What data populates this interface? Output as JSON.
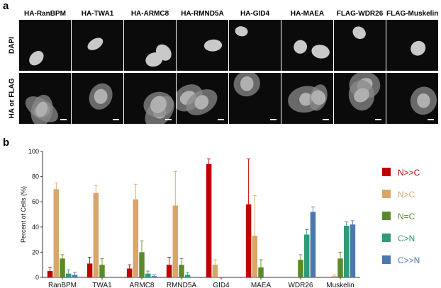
{
  "panel_a": {
    "letter": "a",
    "row_labels": [
      "DAPI",
      "HA or FLAG"
    ],
    "columns": [
      "HA-RanBPM",
      "HA-TWA1",
      "HA-ARMC8",
      "HA-RMND5A",
      "HA-GID4",
      "HA-MAEA",
      "FLAG-WDR26",
      "FLAG-Muskelin"
    ]
  },
  "panel_b": {
    "letter": "b"
  },
  "chart_data": {
    "type": "bar",
    "ylabel": "Percent of Cells (%)",
    "ylim": [
      0,
      100
    ],
    "yticks": [
      0,
      20,
      40,
      60,
      80,
      100
    ],
    "categories": [
      "RanBPM",
      "TWA1",
      "ARMC8",
      "RMND5A",
      "GID4",
      "MAEA",
      "WDR26",
      "Muskelin"
    ],
    "series": [
      {
        "name": "N>>C",
        "color": "#c00000",
        "values": [
          5,
          11,
          7,
          10,
          90,
          58,
          0,
          0
        ],
        "errors": [
          3,
          5,
          3,
          6,
          4,
          36,
          0,
          0
        ]
      },
      {
        "name": "N>C",
        "color": "#d8a56a",
        "values": [
          70,
          67,
          62,
          57,
          10,
          33,
          0,
          1
        ],
        "errors": [
          5,
          6,
          12,
          27,
          4,
          32,
          0,
          1
        ]
      },
      {
        "name": "N=C",
        "color": "#5a8a2a",
        "values": [
          15,
          10,
          20,
          10,
          0,
          8,
          14,
          15
        ],
        "errors": [
          3,
          5,
          9,
          5,
          0,
          6,
          4,
          5
        ]
      },
      {
        "name": "C>N",
        "color": "#2e9a78",
        "values": [
          3,
          0,
          3,
          2,
          0,
          0,
          34,
          41
        ],
        "errors": [
          3,
          0,
          2,
          2,
          0,
          0,
          4,
          3
        ]
      },
      {
        "name": "C>>N",
        "color": "#4a78b0",
        "values": [
          2,
          0,
          1,
          0,
          0,
          0,
          52,
          42
        ],
        "errors": [
          2,
          0,
          1,
          0,
          0,
          0,
          4,
          3
        ]
      }
    ],
    "legend_position": "right",
    "grid": false
  }
}
